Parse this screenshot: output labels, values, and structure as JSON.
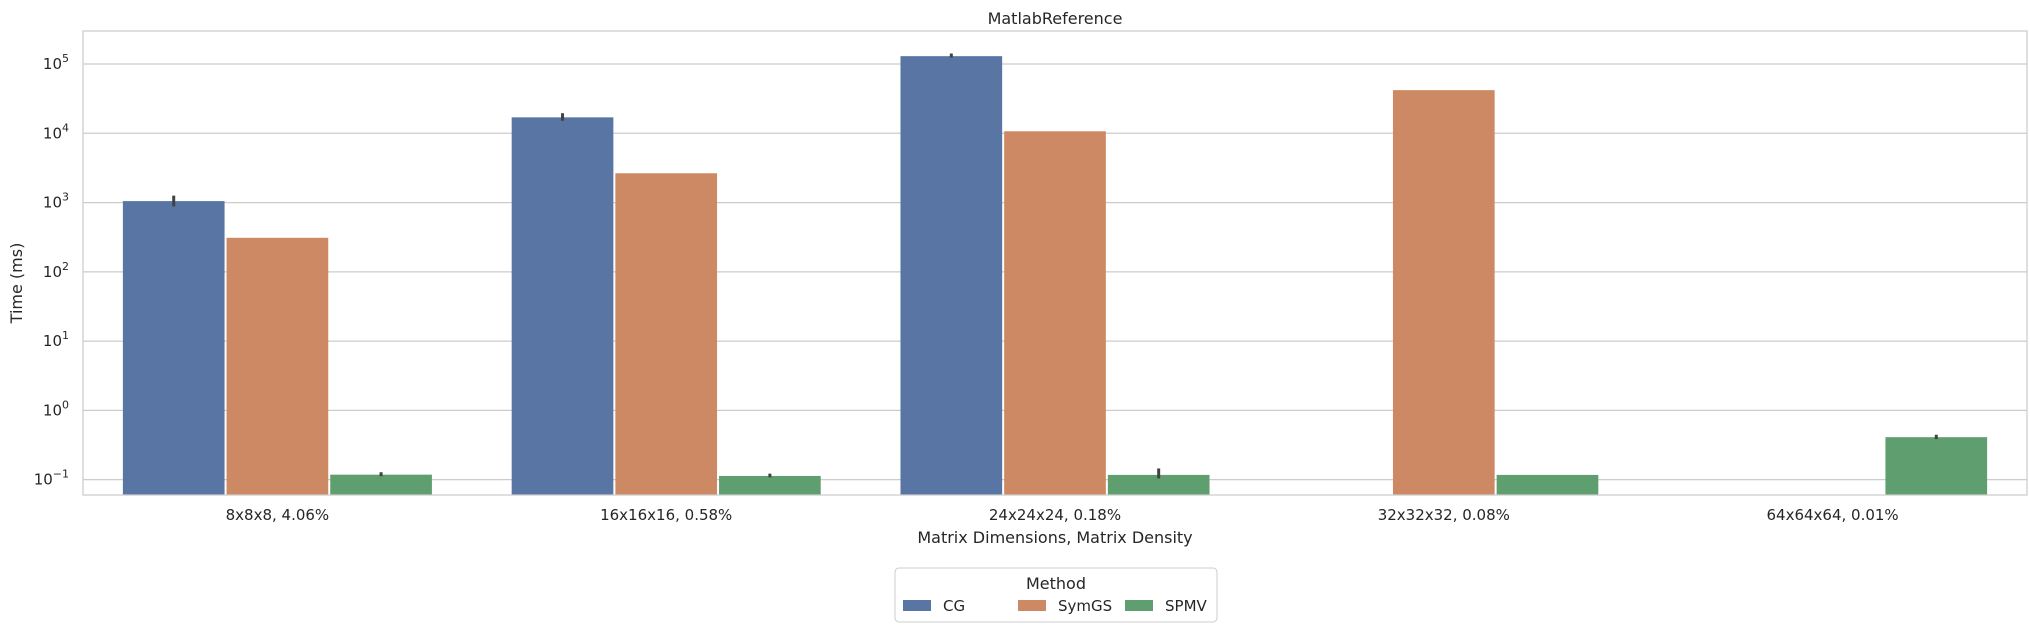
{
  "chart_data": {
    "type": "bar",
    "title": "MatlabReference",
    "xlabel": "Matrix Dimensions, Matrix Density",
    "ylabel": "Time (ms)",
    "yscale": "log",
    "ylim": [
      0.06,
      300000
    ],
    "y_ticks": [
      {
        "value": 0.1,
        "base": "10",
        "exp": "−1"
      },
      {
        "value": 1,
        "base": "10",
        "exp": "0"
      },
      {
        "value": 10,
        "base": "10",
        "exp": "1"
      },
      {
        "value": 100,
        "base": "10",
        "exp": "2"
      },
      {
        "value": 1000,
        "base": "10",
        "exp": "3"
      },
      {
        "value": 10000,
        "base": "10",
        "exp": "4"
      },
      {
        "value": 100000,
        "base": "10",
        "exp": "5"
      }
    ],
    "grid": true,
    "categories": [
      "8x8x8, 4.06%",
      "16x16x16, 0.58%",
      "24x24x24, 0.18%",
      "32x32x32, 0.08%",
      "64x64x64, 0.01%"
    ],
    "series": [
      {
        "name": "CG",
        "color": "#5875a4",
        "values": [
          1050,
          17000,
          130000,
          null,
          null
        ],
        "err_low": [
          880,
          15200,
          124000,
          null,
          null
        ],
        "err_high": [
          1260,
          19500,
          142000,
          null,
          null
        ]
      },
      {
        "name": "SymGS",
        "color": "#cc8963",
        "values": [
          310,
          2650,
          10700,
          42000,
          null
        ],
        "err_low": [
          null,
          null,
          null,
          null,
          null
        ],
        "err_high": [
          null,
          null,
          null,
          null,
          null
        ]
      },
      {
        "name": "SPMV",
        "color": "#5f9e6e",
        "values": [
          0.118,
          0.113,
          0.117,
          0.117,
          0.41
        ],
        "err_low": [
          0.112,
          0.108,
          0.104,
          null,
          0.385
        ],
        "err_high": [
          0.128,
          0.122,
          0.145,
          null,
          0.445
        ]
      }
    ],
    "legend": {
      "title": "Method",
      "position": "bottom-center",
      "entries": [
        "CG",
        "SymGS",
        "SPMV"
      ]
    }
  }
}
